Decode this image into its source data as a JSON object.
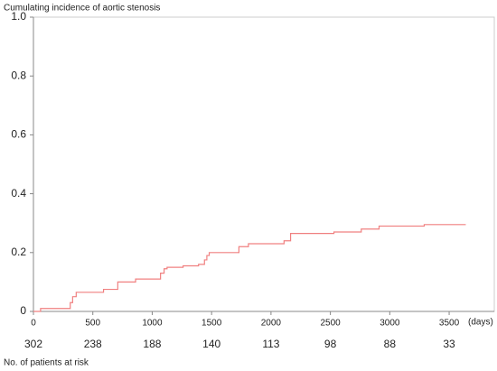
{
  "chart_data": {
    "type": "line",
    "step": "post",
    "title": "Cumulating incidence of aortic stenosis",
    "x_label": "(days)",
    "x": [
      0,
      60,
      310,
      330,
      360,
      590,
      710,
      860,
      1070,
      1100,
      1125,
      1260,
      1390,
      1440,
      1460,
      1480,
      1730,
      1810,
      2110,
      2165,
      2530,
      2760,
      2910,
      3290,
      3640
    ],
    "series": [
      {
        "color": "#f08080",
        "values": [
          0,
          0.01,
          0.03,
          0.05,
          0.065,
          0.075,
          0.1,
          0.11,
          0.13,
          0.145,
          0.15,
          0.155,
          0.16,
          0.175,
          0.19,
          0.2,
          0.22,
          0.23,
          0.24,
          0.265,
          0.27,
          0.28,
          0.29,
          0.295,
          0.295
        ]
      }
    ],
    "xlim": [
      0,
      3880
    ],
    "ylim": [
      0,
      1
    ],
    "xticks": [
      0,
      500,
      1000,
      1500,
      2000,
      2500,
      3000,
      3500
    ],
    "yticks": [
      0,
      0.2,
      0.4,
      0.6,
      0.8,
      {
        "value": 1,
        "label": "1.0"
      }
    ],
    "at_risk_label": "No. of patients at risk",
    "at_risk": [
      302,
      238,
      188,
      140,
      113,
      98,
      88,
      33
    ]
  }
}
